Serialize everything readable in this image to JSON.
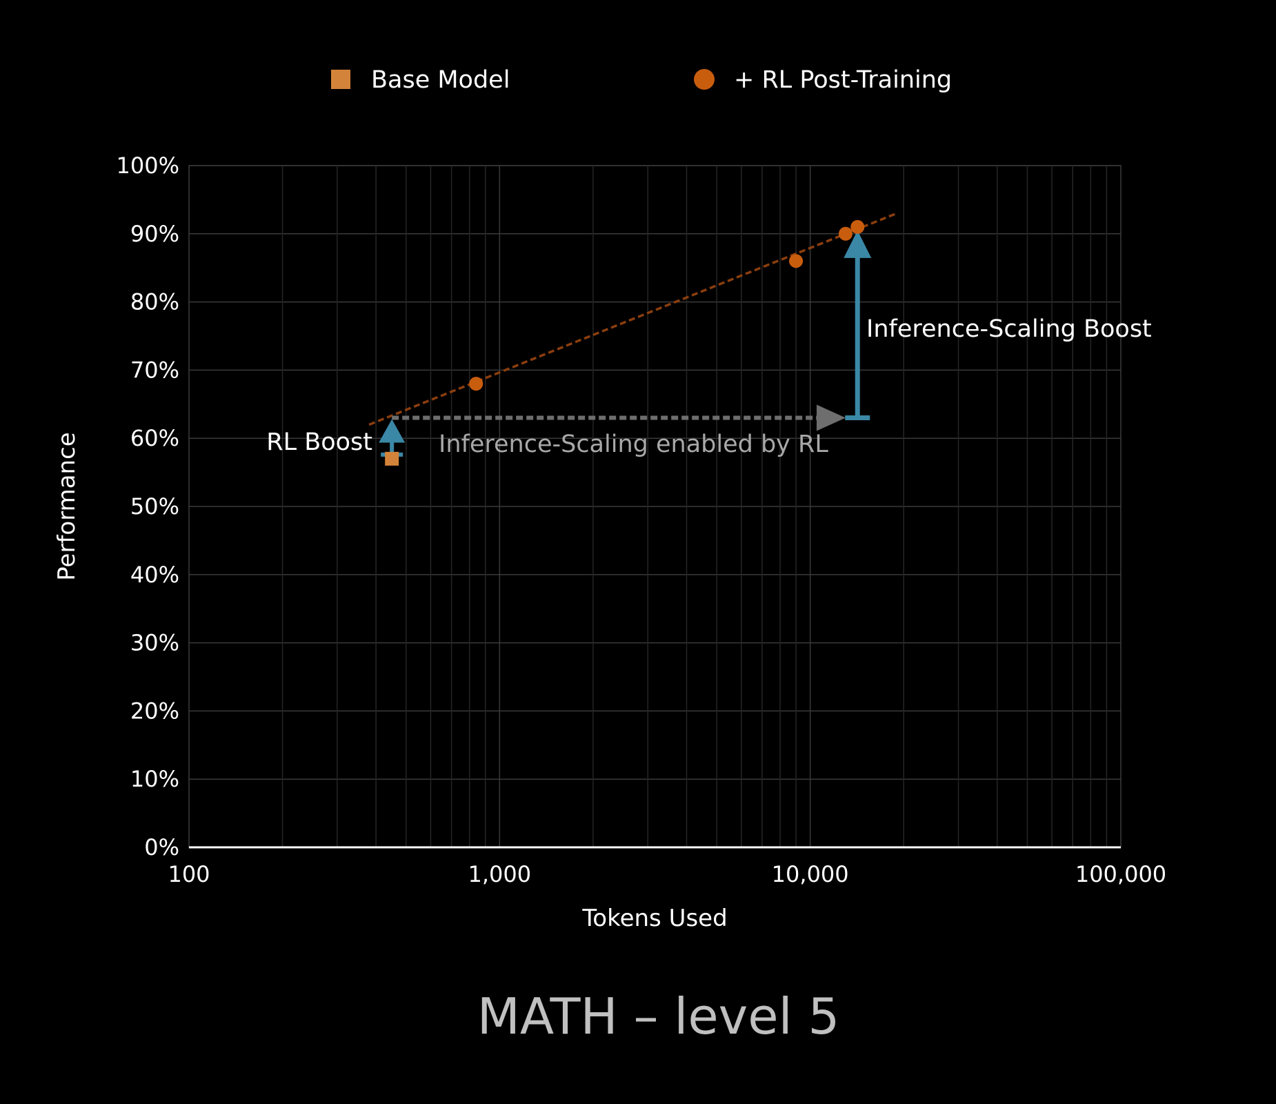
{
  "chart_data": {
    "type": "scatter",
    "title": "MATH – level 5",
    "xlabel": "Tokens Used",
    "ylabel": "Performance",
    "x_scale": "log",
    "xlim": [
      100,
      100000
    ],
    "ylim": [
      0,
      100
    ],
    "x_ticks": [
      {
        "value": 100,
        "label": "100"
      },
      {
        "value": 1000,
        "label": "1,000"
      },
      {
        "value": 10000,
        "label": "10,000"
      },
      {
        "value": 100000,
        "label": "100,000"
      }
    ],
    "y_ticks": [
      {
        "value": 0,
        "label": "0%"
      },
      {
        "value": 10,
        "label": "10%"
      },
      {
        "value": 20,
        "label": "20%"
      },
      {
        "value": 30,
        "label": "30%"
      },
      {
        "value": 40,
        "label": "40%"
      },
      {
        "value": 50,
        "label": "50%"
      },
      {
        "value": 60,
        "label": "60%"
      },
      {
        "value": 70,
        "label": "70%"
      },
      {
        "value": 80,
        "label": "80%"
      },
      {
        "value": 90,
        "label": "90%"
      },
      {
        "value": 100,
        "label": "100%"
      }
    ],
    "grid": true,
    "legend_position": "top",
    "series": [
      {
        "name": "Base Model",
        "marker": "square",
        "color": "#D4843A",
        "points": [
          {
            "x": 450,
            "y": 57
          }
        ]
      },
      {
        "name": "+ RL Post-Training",
        "marker": "circle",
        "color": "#C95D0E",
        "points": [
          {
            "x": 840,
            "y": 68
          },
          {
            "x": 9000,
            "y": 86
          },
          {
            "x": 13000,
            "y": 90
          },
          {
            "x": 14200,
            "y": 91
          }
        ]
      }
    ],
    "trendline": {
      "color": "#8B3E0E",
      "from": {
        "x": 380,
        "y": 62
      },
      "to": {
        "x": 19000,
        "y": 93
      }
    },
    "annotations": [
      {
        "name": "rl-boost",
        "text": "RL Boost",
        "color": "#ffffff",
        "arrow_color": "#3B87A6",
        "arrow_x": 450,
        "arrow_from_y": 57.2,
        "arrow_to_y": 62.8
      },
      {
        "name": "inference-scaling-boost",
        "text": "Inference-Scaling Boost",
        "color": "#ffffff",
        "arrow_color": "#3B87A6",
        "arrow_x": 14200,
        "arrow_from_y": 63,
        "arrow_to_y": 90.5
      },
      {
        "name": "inference-scaling-enabled",
        "text": "Inference-Scaling enabled by RL",
        "color": "#a8a8a8",
        "arrow_color": "#6e6e6e",
        "arrow_y": 63,
        "arrow_from_x": 450,
        "arrow_to_x": 13000
      }
    ]
  }
}
